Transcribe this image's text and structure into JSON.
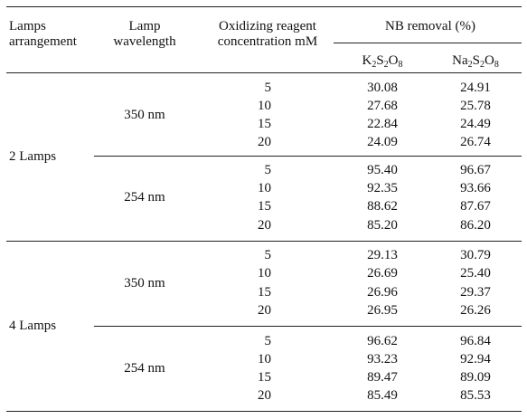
{
  "headers": {
    "lamps_line1": "Lamps",
    "lamps_line2": "arrangement",
    "wavelength_line1": "Lamp",
    "wavelength_line2": "wavelength",
    "conc_line1": "Oxidizing reagent",
    "conc_line2": "concentration mM",
    "nb_removal": "NB removal (%)",
    "k_chem": {
      "a": "K",
      "s1": "2",
      "b": "S",
      "s2": "2",
      "c": "O",
      "s3": "8"
    },
    "na_chem": {
      "a": "Na",
      "s1": "2",
      "b": "S",
      "s2": "2",
      "c": "O",
      "s3": "8"
    }
  },
  "groups": [
    {
      "arrangement": "2 Lamps",
      "blocks": [
        {
          "wavelength": "350 nm",
          "rows": [
            {
              "conc": "5",
              "k": "30.08",
              "na": "24.91"
            },
            {
              "conc": "10",
              "k": "27.68",
              "na": "25.78"
            },
            {
              "conc": "15",
              "k": "22.84",
              "na": "24.49"
            },
            {
              "conc": "20",
              "k": "24.09",
              "na": "26.74"
            }
          ]
        },
        {
          "wavelength": "254 nm",
          "rows": [
            {
              "conc": "5",
              "k": "95.40",
              "na": "96.67"
            },
            {
              "conc": "10",
              "k": "92.35",
              "na": "93.66"
            },
            {
              "conc": "15",
              "k": "88.62",
              "na": "87.67"
            },
            {
              "conc": "20",
              "k": "85.20",
              "na": "86.20"
            }
          ]
        }
      ]
    },
    {
      "arrangement": "4 Lamps",
      "blocks": [
        {
          "wavelength": "350 nm",
          "rows": [
            {
              "conc": "5",
              "k": "29.13",
              "na": "30.79"
            },
            {
              "conc": "10",
              "k": "26.69",
              "na": "25.40"
            },
            {
              "conc": "15",
              "k": "26.96",
              "na": "29.37"
            },
            {
              "conc": "20",
              "k": "26.95",
              "na": "26.26"
            }
          ]
        },
        {
          "wavelength": "254 nm",
          "rows": [
            {
              "conc": "5",
              "k": "96.62",
              "na": "96.84"
            },
            {
              "conc": "10",
              "k": "93.23",
              "na": "92.94"
            },
            {
              "conc": "15",
              "k": "89.47",
              "na": "89.09"
            },
            {
              "conc": "20",
              "k": "85.49",
              "na": "85.53"
            }
          ]
        }
      ]
    }
  ]
}
